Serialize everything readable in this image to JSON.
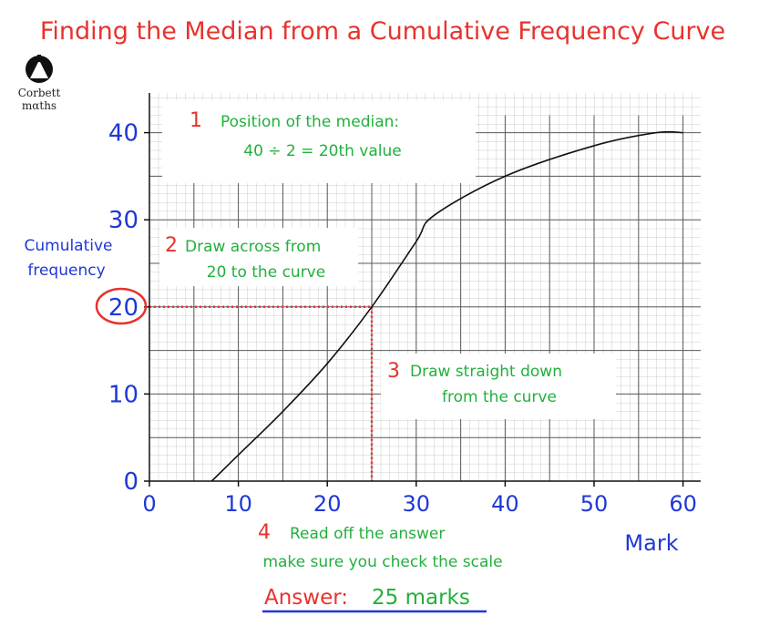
{
  "title": "Finding the Median from a Cumulative Frequency Curve",
  "logo": {
    "line1": "Corbett",
    "line2": "mαths",
    "icon": "corbettmaths-logo-icon"
  },
  "colors": {
    "title": "#e8322d",
    "axis_text": "#1f38d6",
    "step_text": "#22b03c",
    "guide_line": "#e8322d",
    "curve": "#111111",
    "answer_underline": "#1f38d6"
  },
  "steps": [
    {
      "number": "1",
      "lines": [
        "Position of the median:",
        "40 ÷ 2 = 20th value"
      ]
    },
    {
      "number": "2",
      "lines": [
        "Draw across from",
        "20 to the curve"
      ]
    },
    {
      "number": "3",
      "lines": [
        "Draw straight down",
        "from the curve"
      ]
    },
    {
      "number": "4",
      "lines": [
        "Read off the answer",
        "make sure you check the scale"
      ]
    }
  ],
  "answer": {
    "label": "Answer:",
    "value": "25 marks"
  },
  "chart_data": {
    "type": "line",
    "xlabel": "Mark",
    "ylabel": "Cumulative frequency",
    "xlim": [
      0,
      62
    ],
    "ylim": [
      0,
      42
    ],
    "x_ticks": [
      "0",
      "10",
      "20",
      "30",
      "40",
      "50",
      "60"
    ],
    "y_ticks": [
      "0",
      "10",
      "20",
      "30",
      "40"
    ],
    "grid": true,
    "series": [
      {
        "x": [
          7,
          10,
          15,
          20,
          25,
          30,
          32,
          40,
          50,
          57,
          60
        ],
        "y": [
          0,
          3,
          8,
          13.5,
          20,
          27.5,
          30.5,
          35,
          38.5,
          40,
          40
        ]
      }
    ],
    "median_guide": {
      "y": 20,
      "x": 25
    },
    "highlighted_y_tick": "20"
  }
}
